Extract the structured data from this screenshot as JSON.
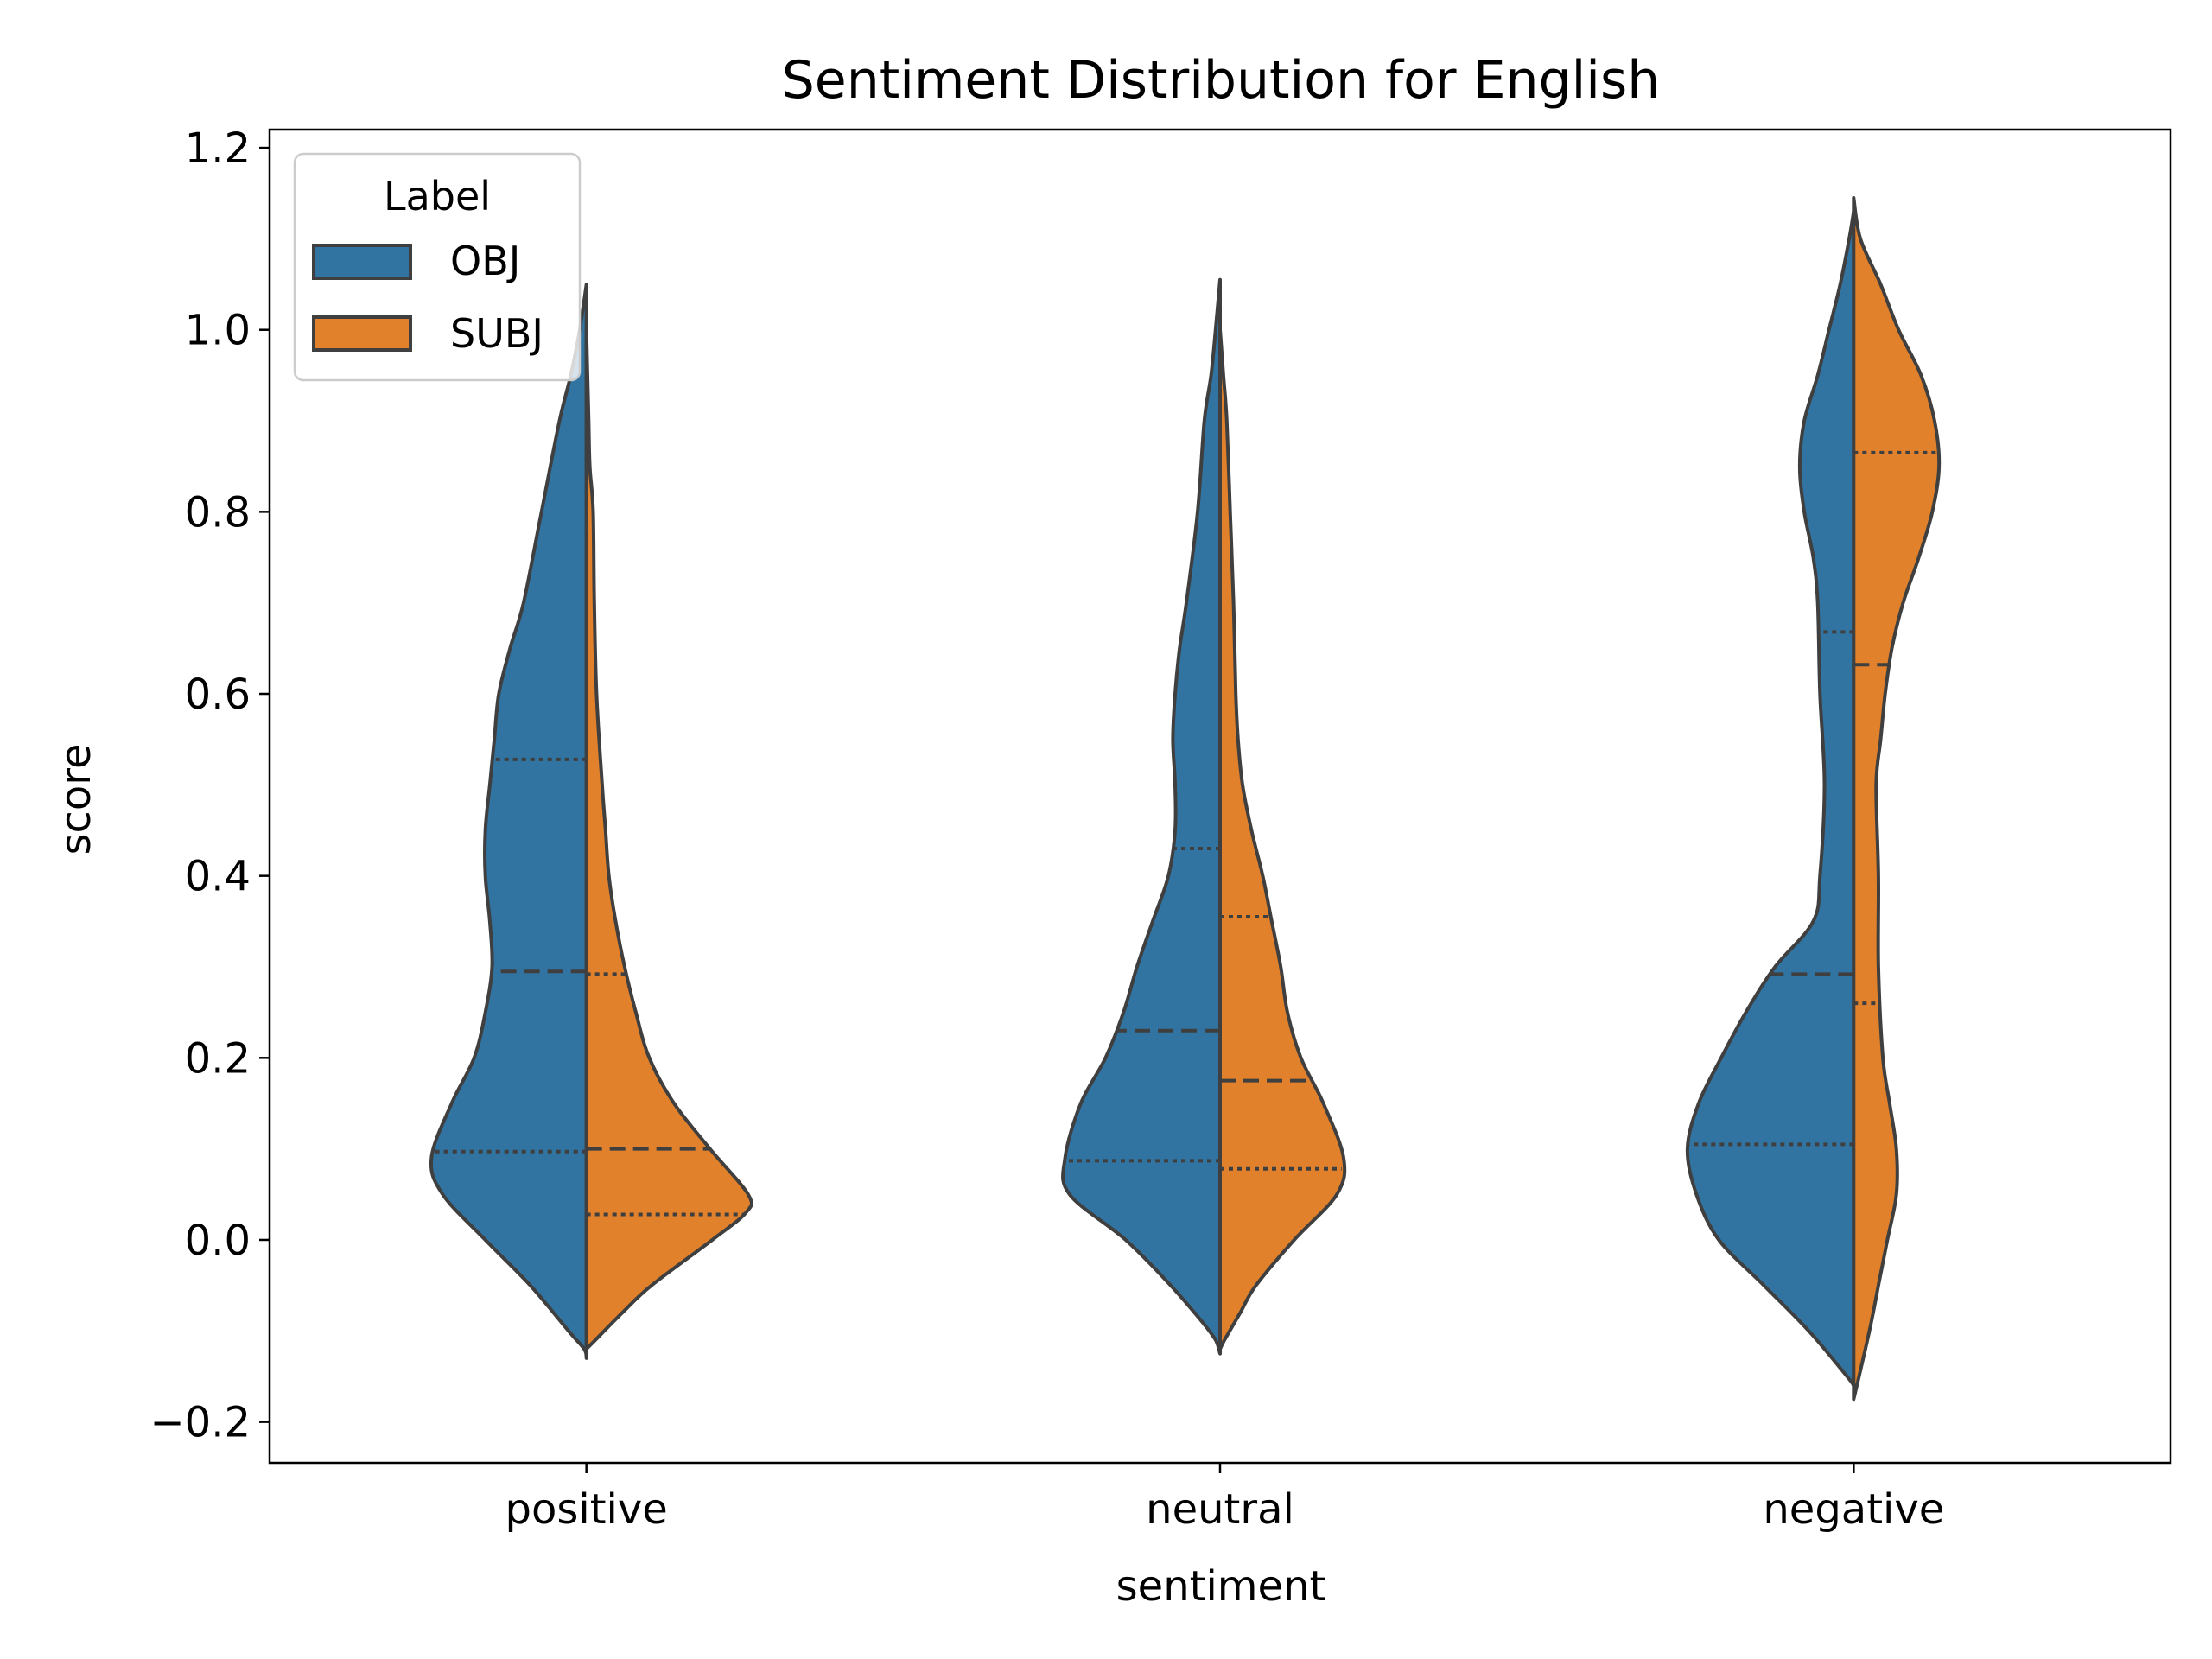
{
  "chart_data": {
    "type": "violin",
    "title": "Sentiment Distribution for English",
    "xlabel": "sentiment",
    "ylabel": "score",
    "ylim": [
      -0.245,
      1.22
    ],
    "yticks": [
      -0.2,
      0.0,
      0.2,
      0.4,
      0.6,
      0.8,
      1.0,
      1.2
    ],
    "ytick_labels": [
      "−0.2",
      "0.0",
      "0.2",
      "0.4",
      "0.6",
      "0.8",
      "1.0",
      "1.2"
    ],
    "categories": [
      "positive",
      "neutral",
      "negative"
    ],
    "split": true,
    "inner": "quartile",
    "grid": false,
    "legend": {
      "title": "Label",
      "position": "top-left",
      "entries": [
        "OBJ",
        "SUBJ"
      ]
    },
    "series": [
      {
        "name": "OBJ",
        "color": "#3274a1",
        "violins": [
          {
            "category": "positive",
            "quartiles": [
              0.097,
              0.295,
              0.528
            ],
            "profile": [
              [
                -0.13,
                0.0
              ],
              [
                -0.12,
                0.01
              ],
              [
                -0.1,
                0.08
              ],
              [
                -0.05,
                0.25
              ],
              [
                0.0,
                0.45
              ],
              [
                0.05,
                0.64
              ],
              [
                0.09,
                0.69
              ],
              [
                0.15,
                0.6
              ],
              [
                0.2,
                0.5
              ],
              [
                0.25,
                0.45
              ],
              [
                0.3,
                0.42
              ],
              [
                0.35,
                0.43
              ],
              [
                0.4,
                0.45
              ],
              [
                0.45,
                0.45
              ],
              [
                0.5,
                0.43
              ],
              [
                0.55,
                0.41
              ],
              [
                0.6,
                0.39
              ],
              [
                0.65,
                0.34
              ],
              [
                0.7,
                0.28
              ],
              [
                0.8,
                0.2
              ],
              [
                0.9,
                0.12
              ],
              [
                0.95,
                0.07
              ],
              [
                1.0,
                0.03
              ],
              [
                1.05,
                0.0
              ]
            ]
          },
          {
            "category": "neutral",
            "quartiles": [
              0.087,
              0.23,
              0.43
            ],
            "profile": [
              [
                -0.125,
                0.0
              ],
              [
                -0.11,
                0.02
              ],
              [
                -0.09,
                0.08
              ],
              [
                -0.05,
                0.22
              ],
              [
                0.0,
                0.42
              ],
              [
                0.05,
                0.67
              ],
              [
                0.09,
                0.69
              ],
              [
                0.15,
                0.62
              ],
              [
                0.2,
                0.51
              ],
              [
                0.25,
                0.43
              ],
              [
                0.3,
                0.37
              ],
              [
                0.35,
                0.3
              ],
              [
                0.4,
                0.23
              ],
              [
                0.45,
                0.2
              ],
              [
                0.5,
                0.2
              ],
              [
                0.55,
                0.21
              ],
              [
                0.6,
                0.2
              ],
              [
                0.65,
                0.18
              ],
              [
                0.7,
                0.15
              ],
              [
                0.8,
                0.1
              ],
              [
                0.9,
                0.07
              ],
              [
                0.95,
                0.04
              ],
              [
                1.0,
                0.02
              ],
              [
                1.055,
                0.0
              ]
            ]
          },
          {
            "category": "negative",
            "quartiles": [
              0.105,
              0.292,
              0.668
            ],
            "profile": [
              [
                -0.16,
                0.0
              ],
              [
                -0.15,
                0.03
              ],
              [
                -0.1,
                0.2
              ],
              [
                -0.05,
                0.4
              ],
              [
                0.0,
                0.6
              ],
              [
                0.05,
                0.7
              ],
              [
                0.1,
                0.74
              ],
              [
                0.15,
                0.69
              ],
              [
                0.2,
                0.59
              ],
              [
                0.25,
                0.48
              ],
              [
                0.3,
                0.35
              ],
              [
                0.35,
                0.18
              ],
              [
                0.4,
                0.15
              ],
              [
                0.5,
                0.13
              ],
              [
                0.6,
                0.15
              ],
              [
                0.7,
                0.16
              ],
              [
                0.75,
                0.18
              ],
              [
                0.8,
                0.22
              ],
              [
                0.85,
                0.24
              ],
              [
                0.9,
                0.22
              ],
              [
                0.95,
                0.16
              ],
              [
                1.0,
                0.11
              ],
              [
                1.05,
                0.06
              ],
              [
                1.1,
                0.02
              ],
              [
                1.13,
                0.0
              ]
            ]
          }
        ]
      },
      {
        "name": "SUBJ",
        "color": "#e1812c",
        "violins": [
          {
            "category": "positive",
            "quartiles": [
              0.028,
              0.1,
              0.292
            ],
            "profile": [
              [
                -0.12,
                0.0
              ],
              [
                -0.11,
                0.04
              ],
              [
                -0.08,
                0.16
              ],
              [
                -0.05,
                0.29
              ],
              [
                0.0,
                0.56
              ],
              [
                0.03,
                0.71
              ],
              [
                0.05,
                0.72
              ],
              [
                0.1,
                0.55
              ],
              [
                0.15,
                0.39
              ],
              [
                0.2,
                0.28
              ],
              [
                0.25,
                0.22
              ],
              [
                0.3,
                0.17
              ],
              [
                0.35,
                0.13
              ],
              [
                0.4,
                0.1
              ],
              [
                0.45,
                0.085
              ],
              [
                0.5,
                0.07
              ],
              [
                0.6,
                0.045
              ],
              [
                0.7,
                0.035
              ],
              [
                0.8,
                0.03
              ],
              [
                0.85,
                0.015
              ],
              [
                0.9,
                0.01
              ],
              [
                1.0,
                0.0
              ]
            ]
          },
          {
            "category": "neutral",
            "quartiles": [
              0.078,
              0.175,
              0.355
            ],
            "profile": [
              [
                -0.12,
                0.0
              ],
              [
                -0.11,
                0.02
              ],
              [
                -0.08,
                0.09
              ],
              [
                -0.05,
                0.16
              ],
              [
                0.0,
                0.33
              ],
              [
                0.05,
                0.52
              ],
              [
                0.09,
                0.55
              ],
              [
                0.15,
                0.46
              ],
              [
                0.2,
                0.36
              ],
              [
                0.25,
                0.3
              ],
              [
                0.3,
                0.27
              ],
              [
                0.35,
                0.23
              ],
              [
                0.4,
                0.19
              ],
              [
                0.45,
                0.14
              ],
              [
                0.5,
                0.1
              ],
              [
                0.55,
                0.08
              ],
              [
                0.6,
                0.07
              ],
              [
                0.7,
                0.06
              ],
              [
                0.8,
                0.045
              ],
              [
                0.9,
                0.03
              ],
              [
                0.95,
                0.015
              ],
              [
                1.0,
                0.0
              ]
            ]
          },
          {
            "category": "negative",
            "quartiles": [
              0.26,
              0.632,
              0.865
            ],
            "profile": [
              [
                -0.175,
                0.0
              ],
              [
                -0.1,
                0.07
              ],
              [
                -0.05,
                0.11
              ],
              [
                0.0,
                0.15
              ],
              [
                0.05,
                0.19
              ],
              [
                0.1,
                0.19
              ],
              [
                0.15,
                0.16
              ],
              [
                0.2,
                0.13
              ],
              [
                0.3,
                0.11
              ],
              [
                0.4,
                0.11
              ],
              [
                0.5,
                0.1
              ],
              [
                0.55,
                0.12
              ],
              [
                0.6,
                0.14
              ],
              [
                0.65,
                0.17
              ],
              [
                0.7,
                0.22
              ],
              [
                0.75,
                0.29
              ],
              [
                0.8,
                0.35
              ],
              [
                0.85,
                0.38
              ],
              [
                0.9,
                0.36
              ],
              [
                0.95,
                0.3
              ],
              [
                1.0,
                0.2
              ],
              [
                1.05,
                0.12
              ],
              [
                1.1,
                0.03
              ],
              [
                1.145,
                0.0
              ]
            ]
          }
        ]
      }
    ]
  }
}
